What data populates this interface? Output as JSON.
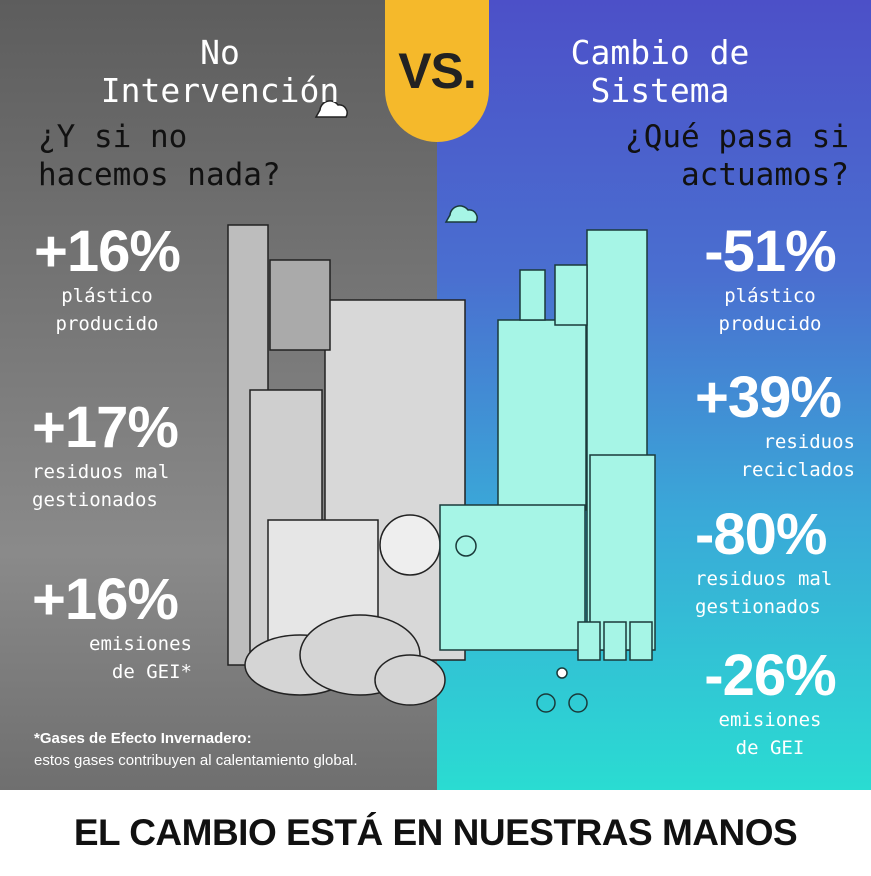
{
  "vs_label": "VS.",
  "left": {
    "title_line1": "No",
    "title_line2": "Intervención",
    "question_line1": "¿Y si no",
    "question_line2": "hacemos nada?",
    "stats": [
      {
        "value": "+16%",
        "label_line1": "plástico",
        "label_line2": "producido"
      },
      {
        "value": "+17%",
        "label_line1": "residuos mal",
        "label_line2": "gestionados"
      },
      {
        "value": "+16%",
        "label_line1": "emisiones",
        "label_line2": "de GEI*"
      }
    ],
    "footnote_title": "*Gases de Efecto Invernadero:",
    "footnote_text": "estos gases contribuyen al calentamiento global."
  },
  "right": {
    "title_line1": "Cambio de",
    "title_line2": "Sistema",
    "question_line1": "¿Qué pasa si",
    "question_line2": "actuamos?",
    "stats": [
      {
        "value": "-51%",
        "label_line1": "plástico",
        "label_line2": "producido"
      },
      {
        "value": "+39%",
        "label_line1": "residuos",
        "label_line2": "reciclados"
      },
      {
        "value": "-80%",
        "label_line1": "residuos mal",
        "label_line2": "gestionados"
      },
      {
        "value": "-26%",
        "label_line1": "emisiones",
        "label_line2": "de GEI"
      }
    ]
  },
  "footer": "EL CAMBIO ESTÁ EN NUESTRAS MANOS",
  "colors": {
    "vs_badge": "#f5b92b",
    "left_bg": "#6f6f6f",
    "right_top": "#4c50c8",
    "right_bottom": "#2adcd2",
    "building_right": "#a6f5e6"
  }
}
